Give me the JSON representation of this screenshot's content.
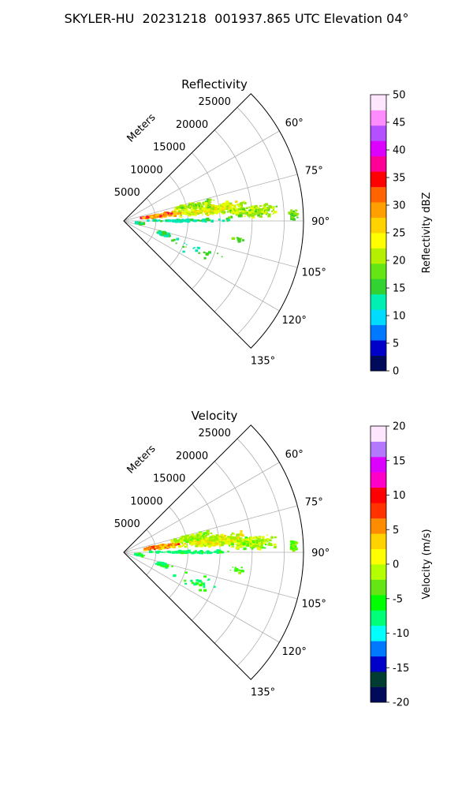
{
  "figure": {
    "title": "SKYLER-HU  20231218  001937.865 UTC Elevation 04°"
  },
  "chart_data": [
    {
      "type": "heatmap",
      "title": "Reflectivity",
      "projection": "polar-sector",
      "radial_label": "Meters",
      "radial_ticks": [
        "5000",
        "10000",
        "15000",
        "20000",
        "25000"
      ],
      "angle_ticks": [
        "60°",
        "75°",
        "90°",
        "105°",
        "120°",
        "135°"
      ],
      "colorbar": {
        "label": "Reflectivity dBZ",
        "range": [
          0,
          50
        ],
        "ticks": [
          "0",
          "5",
          "10",
          "15",
          "20",
          "25",
          "30",
          "35",
          "40",
          "45",
          "50"
        ],
        "stops": [
          "#000a5a",
          "#0000c8",
          "#0078ff",
          "#00dcff",
          "#00f0b4",
          "#32d232",
          "#64e614",
          "#b4f000",
          "#ffff00",
          "#ffd200",
          "#ffa000",
          "#ff6400",
          "#ff0000",
          "#ff0096",
          "#dc00ff",
          "#b450ff",
          "#ff8cff",
          "#ffe6ff"
        ]
      },
      "echo_color_scale": [
        "#00e6b4",
        "#3cd21e",
        "#96e60a",
        "#e6ff00",
        "#ffd200",
        "#ff8c00",
        "#ff0050"
      ]
    },
    {
      "type": "heatmap",
      "title": "Velocity",
      "projection": "polar-sector",
      "radial_label": "Meters",
      "radial_ticks": [
        "5000",
        "10000",
        "15000",
        "20000",
        "25000"
      ],
      "angle_ticks": [
        "60°",
        "75°",
        "90°",
        "105°",
        "120°",
        "135°"
      ],
      "colorbar": {
        "label": "Velocity (m/s)",
        "range": [
          -20,
          20
        ],
        "ticks": [
          "-20",
          "-15",
          "-10",
          "-5",
          "0",
          "5",
          "10",
          "15",
          "20"
        ],
        "stops": [
          "#000a5a",
          "#003c32",
          "#0000c8",
          "#0078ff",
          "#00ffff",
          "#00ff78",
          "#00ff00",
          "#64e614",
          "#b4ff00",
          "#ffff00",
          "#ffd200",
          "#ff8c00",
          "#ff3200",
          "#ff0000",
          "#ff00c8",
          "#dc00ff",
          "#b478ff",
          "#ffe6ff"
        ]
      },
      "echo_color_scale": [
        "#00ff78",
        "#32ff00",
        "#96f000",
        "#e6ff00",
        "#ffd200",
        "#ff7800",
        "#ff1e00"
      ]
    }
  ]
}
